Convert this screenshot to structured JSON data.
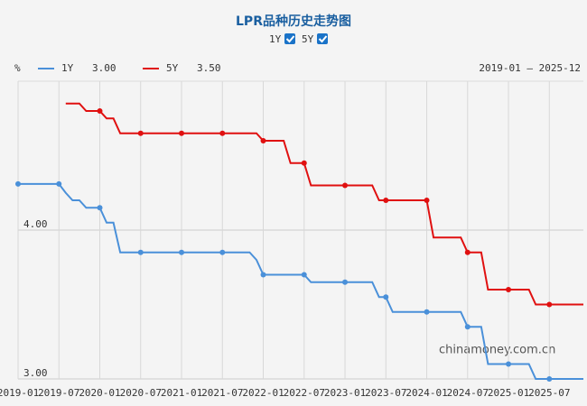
{
  "chart_data": {
    "type": "line",
    "title": "LPR品种历史走势图",
    "y_unit": "%",
    "date_range": "2019-01 – 2025-12",
    "watermark": "chinamoney.com.cn",
    "categories": [
      "2019-01",
      "2019-02",
      "2019-03",
      "2019-04",
      "2019-05",
      "2019-06",
      "2019-07",
      "2019-08",
      "2019-09",
      "2019-10",
      "2019-11",
      "2019-12",
      "2020-01",
      "2020-02",
      "2020-03",
      "2020-04",
      "2020-05",
      "2020-06",
      "2020-07",
      "2020-08",
      "2020-09",
      "2020-10",
      "2020-11",
      "2020-12",
      "2021-01",
      "2021-02",
      "2021-03",
      "2021-04",
      "2021-05",
      "2021-06",
      "2021-07",
      "2021-08",
      "2021-09",
      "2021-10",
      "2021-11",
      "2021-12",
      "2022-01",
      "2022-02",
      "2022-03",
      "2022-04",
      "2022-05",
      "2022-06",
      "2022-07",
      "2022-08",
      "2022-09",
      "2022-10",
      "2022-11",
      "2022-12",
      "2023-01",
      "2023-02",
      "2023-03",
      "2023-04",
      "2023-05",
      "2023-06",
      "2023-07",
      "2023-08",
      "2023-09",
      "2023-10",
      "2023-11",
      "2023-12",
      "2024-01",
      "2024-02",
      "2024-03",
      "2024-04",
      "2024-05",
      "2024-06",
      "2024-07",
      "2024-08",
      "2024-09",
      "2024-10",
      "2024-11",
      "2024-12",
      "2025-01",
      "2025-02",
      "2025-03",
      "2025-04",
      "2025-05",
      "2025-06",
      "2025-07",
      "2025-08",
      "2025-09",
      "2025-10",
      "2025-11",
      "2025-12"
    ],
    "series": [
      {
        "name": "1Y",
        "color": "#4a90d9",
        "latest_label": "3.00",
        "values": [
          4.31,
          4.31,
          4.31,
          4.31,
          4.31,
          4.31,
          4.31,
          4.25,
          4.2,
          4.2,
          4.15,
          4.15,
          4.15,
          4.05,
          4.05,
          3.85,
          3.85,
          3.85,
          3.85,
          3.85,
          3.85,
          3.85,
          3.85,
          3.85,
          3.85,
          3.85,
          3.85,
          3.85,
          3.85,
          3.85,
          3.85,
          3.85,
          3.85,
          3.85,
          3.85,
          3.8,
          3.7,
          3.7,
          3.7,
          3.7,
          3.7,
          3.7,
          3.7,
          3.65,
          3.65,
          3.65,
          3.65,
          3.65,
          3.65,
          3.65,
          3.65,
          3.65,
          3.65,
          3.55,
          3.55,
          3.45,
          3.45,
          3.45,
          3.45,
          3.45,
          3.45,
          3.45,
          3.45,
          3.45,
          3.45,
          3.45,
          3.35,
          3.35,
          3.35,
          3.1,
          3.1,
          3.1,
          3.1,
          3.1,
          3.1,
          3.1,
          3,
          3,
          3,
          3,
          3,
          3,
          3,
          3
        ]
      },
      {
        "name": "5Y",
        "color": "#e01010",
        "latest_label": "3.50",
        "values": [
          null,
          null,
          null,
          null,
          null,
          null,
          null,
          4.85,
          4.85,
          4.85,
          4.8,
          4.8,
          4.8,
          4.75,
          4.75,
          4.65,
          4.65,
          4.65,
          4.65,
          4.65,
          4.65,
          4.65,
          4.65,
          4.65,
          4.65,
          4.65,
          4.65,
          4.65,
          4.65,
          4.65,
          4.65,
          4.65,
          4.65,
          4.65,
          4.65,
          4.65,
          4.6,
          4.6,
          4.6,
          4.6,
          4.45,
          4.45,
          4.45,
          4.3,
          4.3,
          4.3,
          4.3,
          4.3,
          4.3,
          4.3,
          4.3,
          4.3,
          4.3,
          4.2,
          4.2,
          4.2,
          4.2,
          4.2,
          4.2,
          4.2,
          4.2,
          3.95,
          3.95,
          3.95,
          3.95,
          3.95,
          3.85,
          3.85,
          3.85,
          3.6,
          3.6,
          3.6,
          3.6,
          3.6,
          3.6,
          3.6,
          3.5,
          3.5,
          3.5,
          3.5,
          3.5,
          3.5,
          3.5,
          3.5
        ]
      }
    ],
    "xticks": [
      "2019-01",
      "2019-07",
      "2020-01",
      "2020-07",
      "2021-01",
      "2021-07",
      "2022-01",
      "2022-07",
      "2023-01",
      "2023-07",
      "2024-01",
      "2024-07",
      "2025-01",
      "2025-07"
    ],
    "ylim": [
      3,
      5
    ],
    "yticks": [
      {
        "value": 3,
        "label": "3.00"
      },
      {
        "value": 4,
        "label": "4.00"
      }
    ],
    "grid": true
  }
}
